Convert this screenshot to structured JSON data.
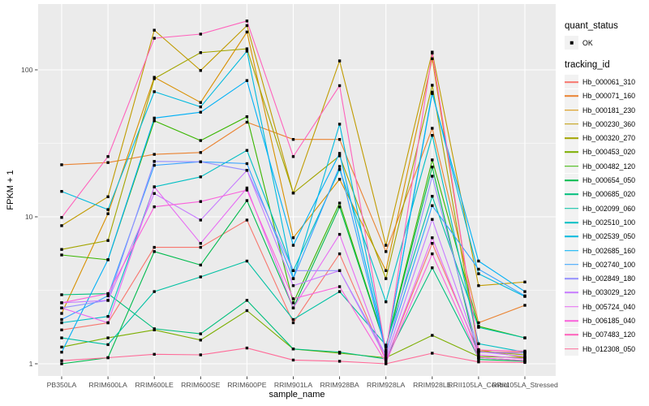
{
  "style": {
    "panel_bg": "#EBEBEB",
    "grid_color": "#FFFFFF",
    "point_color": "#000000",
    "legend_key_bg": "#F2F2F2",
    "tick_label_color": "#4D4D4D",
    "tick_mark_color": "#333333"
  },
  "legend": {
    "quant_status": {
      "title": "quant_status",
      "items": [
        {
          "label": "OK",
          "marker": "filled-black-square"
        }
      ]
    },
    "tracking_id": {
      "title": "tracking_id"
    }
  },
  "chart_data": {
    "type": "line",
    "title": "",
    "xlabel": "sample_name",
    "ylabel": "FPKM + 1",
    "y_scale": "log10",
    "y_ticks": [
      1,
      10,
      100
    ],
    "y_tick_labels": [
      "1",
      "10",
      "100"
    ],
    "ylim": [
      0.84,
      280
    ],
    "grid": true,
    "legend_position": "right",
    "point_shape": "square",
    "point_color": "#000000",
    "categories": [
      "PB350LA",
      "RRIM600LA",
      "RRIM600LE",
      "RRIM600SE",
      "RRIM600PE",
      "RRIM901LA",
      "RRIM928BA",
      "RRIM928LA",
      "RRIM928LE",
      "RRII105LA_Control",
      "RRII105LA_Stressed"
    ],
    "series": [
      {
        "name": "Hb_000061_310",
        "color": "#F8766D",
        "values": [
          1.7,
          1.9,
          6.2,
          6.2,
          9.5,
          1.9,
          5.6,
          1.05,
          6.6,
          1.2,
          1.2
        ]
      },
      {
        "name": "Hb_000071_160",
        "color": "#EA8331",
        "values": [
          22.6,
          23.4,
          26.6,
          27.4,
          44,
          33.6,
          33.6,
          5.8,
          40,
          1.9,
          2.5
        ]
      },
      {
        "name": "Hb_000181_230",
        "color": "#D89000",
        "values": [
          2.2,
          10.5,
          89,
          60,
          181,
          7.2,
          18,
          4.3,
          119,
          1.25,
          1.1
        ]
      },
      {
        "name": "Hb_000230_360",
        "color": "#C09B00",
        "values": [
          8.7,
          13.7,
          186,
          99,
          200,
          14.5,
          115,
          6.4,
          132,
          3.4,
          3.6
        ]
      },
      {
        "name": "Hb_000320_270",
        "color": "#A3A500",
        "values": [
          6.0,
          6.9,
          87,
          131,
          139,
          14.5,
          26,
          3.8,
          78.5,
          1.22,
          1.15
        ]
      },
      {
        "name": "Hb_000453_020",
        "color": "#7CAE00",
        "values": [
          1.3,
          1.5,
          1.7,
          1.45,
          2.3,
          1.26,
          1.18,
          1.1,
          1.56,
          1.12,
          1.1
        ]
      },
      {
        "name": "Hb_000482_120",
        "color": "#39B600",
        "values": [
          5.5,
          5.1,
          45,
          33,
          48,
          2.6,
          12.4,
          1.3,
          24.4,
          1.8,
          1.5
        ]
      },
      {
        "name": "Hb_000654_050",
        "color": "#00BB4E",
        "values": [
          1.0,
          1.1,
          5.8,
          4.7,
          12.9,
          2.4,
          11.7,
          1.29,
          21.8,
          1.07,
          1.04
        ]
      },
      {
        "name": "Hb_000685_020",
        "color": "#00BF7D",
        "values": [
          2.95,
          3.0,
          1.73,
          1.6,
          2.7,
          1.26,
          1.2,
          1.08,
          4.5,
          1.1,
          1.05
        ]
      },
      {
        "name": "Hb_002099_060",
        "color": "#00C1A3",
        "values": [
          1.5,
          1.35,
          3.1,
          3.9,
          5.0,
          2.0,
          3.1,
          1.34,
          13.8,
          1.77,
          1.5
        ]
      },
      {
        "name": "Hb_002510_100",
        "color": "#00BFC4",
        "values": [
          1.9,
          2.1,
          16,
          18.7,
          28.3,
          4.3,
          21,
          2.64,
          35.8,
          1.37,
          1.2
        ]
      },
      {
        "name": "Hb_002539_050",
        "color": "#00BADE",
        "values": [
          14.9,
          11.2,
          71,
          56,
          134,
          3.8,
          42.7,
          1.23,
          70.6,
          4.1,
          2.87
        ]
      },
      {
        "name": "Hb_002685_160",
        "color": "#00B0F6",
        "values": [
          1.2,
          5.1,
          47,
          51.5,
          84.5,
          6.4,
          27,
          1.23,
          69,
          5.0,
          3.1
        ]
      },
      {
        "name": "Hb_002740_100",
        "color": "#35A2FF",
        "values": [
          2.0,
          2.9,
          22.4,
          23.7,
          23,
          3.8,
          22,
          1.2,
          11.9,
          4.4,
          2.9
        ]
      },
      {
        "name": "Hb_002849_180",
        "color": "#9590FF",
        "values": [
          2.4,
          2.7,
          23.8,
          23.7,
          20.7,
          4.3,
          4.3,
          1.15,
          18.9,
          1.2,
          1.18
        ]
      },
      {
        "name": "Hb_003029_120",
        "color": "#C77CFF",
        "values": [
          2.6,
          2.7,
          14.4,
          9.5,
          20.7,
          3.4,
          4.3,
          1.1,
          9.6,
          1.21,
          1.12
        ]
      },
      {
        "name": "Hb_005724_040",
        "color": "#E76BF3",
        "values": [
          2.4,
          1.9,
          16.0,
          6.6,
          15.7,
          2.4,
          7.6,
          1.05,
          7.2,
          1.15,
          1.08
        ]
      },
      {
        "name": "Hb_006185_040",
        "color": "#FA62DB",
        "values": [
          2.6,
          3.0,
          11.7,
          12.7,
          15.2,
          2.77,
          3.35,
          1.02,
          5.6,
          1.1,
          1.05
        ]
      },
      {
        "name": "Hb_007483_120",
        "color": "#FF62BC",
        "values": [
          9.9,
          25.7,
          164,
          175,
          215,
          25.7,
          78,
          1.2,
          130,
          1.24,
          1.22
        ]
      },
      {
        "name": "Hb_012308_050",
        "color": "#FF6A98",
        "values": [
          1.05,
          1.1,
          1.16,
          1.15,
          1.28,
          1.06,
          1.04,
          1.0,
          1.18,
          1.03,
          1.02
        ]
      }
    ]
  }
}
